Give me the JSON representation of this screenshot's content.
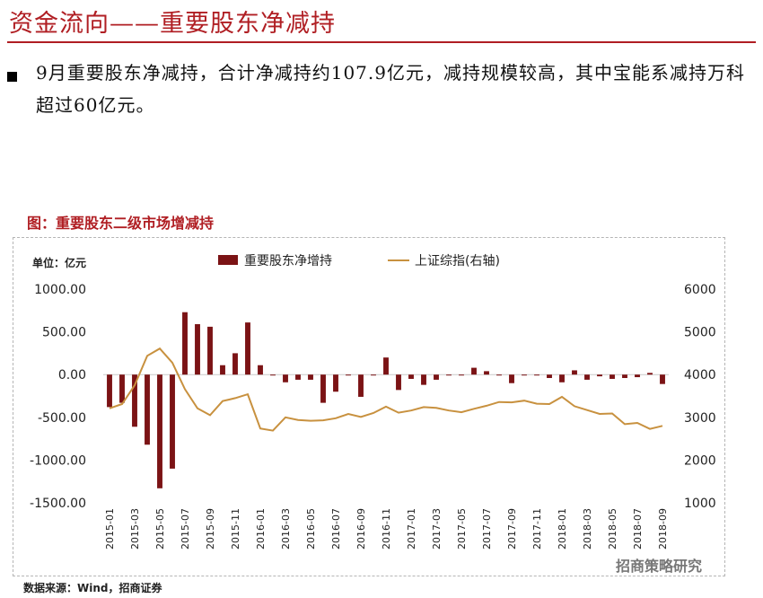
{
  "header": {
    "title": "资金流向——重要股东净减持"
  },
  "summary": {
    "text": "9月重要股东净减持，合计净减持约107.9亿元，减持规模较高，其中宝能系减持万科超过60亿元。"
  },
  "figure": {
    "title": "图：重要股东二级市场增减持",
    "source": "数据来源：Wind，招商证券"
  },
  "watermark": {
    "text": "招商策略研究"
  },
  "colors": {
    "accent": "#b01e23",
    "bar": "#7b1315",
    "line": "#c8913f"
  },
  "chart_data": {
    "type": "bar+line",
    "unit_label": "单位：亿元",
    "categories": [
      "2015-01",
      "2015-02",
      "2015-03",
      "2015-04",
      "2015-05",
      "2015-06",
      "2015-07",
      "2015-08",
      "2015-09",
      "2015-10",
      "2015-11",
      "2015-12",
      "2016-01",
      "2016-02",
      "2016-03",
      "2016-04",
      "2016-05",
      "2016-06",
      "2016-07",
      "2016-08",
      "2016-09",
      "2016-10",
      "2016-11",
      "2016-12",
      "2017-01",
      "2017-02",
      "2017-03",
      "2017-04",
      "2017-05",
      "2017-06",
      "2017-07",
      "2017-08",
      "2017-09",
      "2017-10",
      "2017-11",
      "2017-12",
      "2018-01",
      "2018-02",
      "2018-03",
      "2018-04",
      "2018-05",
      "2018-06",
      "2018-07",
      "2018-08",
      "2018-09"
    ],
    "tick_labels": [
      "2015-01",
      "2015-03",
      "2015-05",
      "2015-07",
      "2015-09",
      "2015-11",
      "2016-01",
      "2016-03",
      "2016-05",
      "2016-07",
      "2016-09",
      "2016-11",
      "2017-01",
      "2017-03",
      "2017-05",
      "2017-07",
      "2017-09",
      "2017-11",
      "2018-01",
      "2018-03",
      "2018-05",
      "2018-07",
      "2018-09"
    ],
    "series": [
      {
        "name": "重要股东净增持",
        "axis": "left",
        "type": "bar",
        "values": [
          -380,
          -330,
          -610,
          -820,
          -1330,
          -1100,
          730,
          590,
          560,
          110,
          250,
          610,
          110,
          -5,
          -90,
          -60,
          -60,
          -330,
          -200,
          -10,
          -260,
          -10,
          200,
          -180,
          -50,
          -120,
          -60,
          0,
          -10,
          80,
          40,
          -5,
          -100,
          -5,
          0,
          -40,
          -90,
          50,
          -60,
          -20,
          -50,
          -40,
          -30,
          20,
          -110
        ]
      },
      {
        "name": "上证综指(右轴)",
        "axis": "right",
        "type": "line",
        "values": [
          3210,
          3310,
          3750,
          4440,
          4610,
          4280,
          3660,
          3210,
          3050,
          3380,
          3450,
          3540,
          2740,
          2690,
          3000,
          2940,
          2920,
          2930,
          2980,
          3080,
          3010,
          3100,
          3250,
          3110,
          3160,
          3240,
          3220,
          3160,
          3120,
          3200,
          3270,
          3360,
          3350,
          3390,
          3320,
          3310,
          3480,
          3260,
          3170,
          3080,
          3090,
          2840,
          2870,
          2730,
          2800
        ]
      }
    ],
    "left_axis": {
      "ticks": [
        "1000.00",
        "500.00",
        "0.00",
        "-500.00",
        "-1000.00",
        "-1500.00"
      ],
      "range": [
        -1500,
        1000
      ]
    },
    "right_axis": {
      "ticks": [
        "6000",
        "5000",
        "4000",
        "3000",
        "2000",
        "1000"
      ],
      "range": [
        1000,
        6000
      ]
    }
  }
}
